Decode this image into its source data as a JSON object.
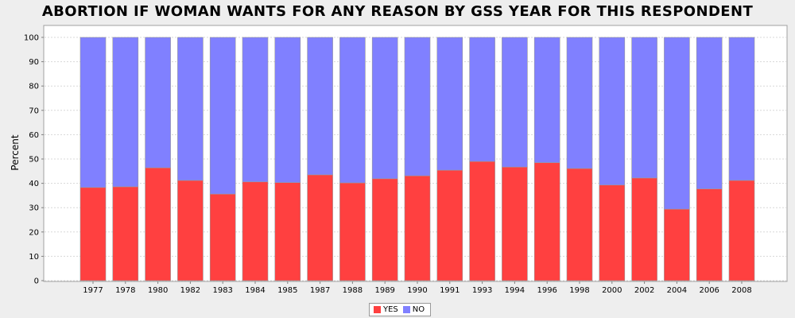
{
  "chart_data": {
    "type": "bar",
    "stacked": true,
    "title": "ABORTION IF WOMAN WANTS FOR ANY REASON BY GSS YEAR FOR THIS RESPONDENT",
    "xlabel": "",
    "ylabel": "Percent",
    "ylim": [
      0,
      100
    ],
    "yticks": [
      "0",
      "10",
      "20",
      "30",
      "40",
      "50",
      "60",
      "70",
      "80",
      "90",
      "100"
    ],
    "grid": true,
    "legend_position": "bottom-center",
    "categories": [
      "1977",
      "1978",
      "1980",
      "1982",
      "1983",
      "1984",
      "1985",
      "1987",
      "1988",
      "1989",
      "1990",
      "1991",
      "1993",
      "1994",
      "1996",
      "1998",
      "2000",
      "2002",
      "2004",
      "2006",
      "2008"
    ],
    "series": [
      {
        "name": "YES",
        "color": "#ff4040",
        "values": [
          38.3,
          38.6,
          46.4,
          41.2,
          35.6,
          40.6,
          40.3,
          43.5,
          40.2,
          41.9,
          43.1,
          45.4,
          49.0,
          46.7,
          48.5,
          46.1,
          39.3,
          42.2,
          29.4,
          37.7,
          41.2
        ]
      },
      {
        "name": "NO",
        "color": "#8080ff",
        "values": [
          61.7,
          61.4,
          53.6,
          58.8,
          64.4,
          59.4,
          59.7,
          56.5,
          59.8,
          58.1,
          56.9,
          54.6,
          51.0,
          53.3,
          51.5,
          53.9,
          60.7,
          57.8,
          70.6,
          62.3,
          58.8
        ]
      }
    ]
  }
}
